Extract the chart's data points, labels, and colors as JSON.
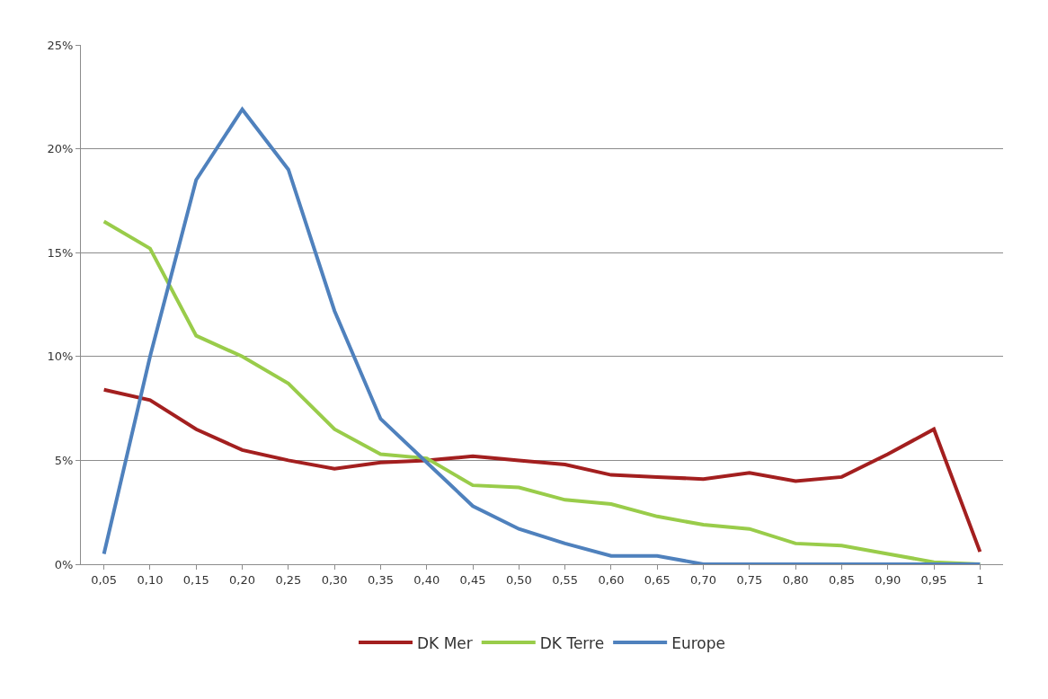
{
  "chart_data": {
    "type": "line",
    "categories": [
      "0,05",
      "0,10",
      "0,15",
      "0,20",
      "0,25",
      "0,30",
      "0,35",
      "0,40",
      "0,45",
      "0,50",
      "0,55",
      "0,60",
      "0,65",
      "0,70",
      "0,75",
      "0,80",
      "0,85",
      "0,90",
      "0,95",
      "1"
    ],
    "series": [
      {
        "name": "DK Mer",
        "color": "#a31f1f",
        "values": [
          8.4,
          7.9,
          6.5,
          5.5,
          5.0,
          4.6,
          4.9,
          5.0,
          5.2,
          5.0,
          4.8,
          4.3,
          4.2,
          4.1,
          4.4,
          4.0,
          4.2,
          5.3,
          6.5,
          0.6
        ]
      },
      {
        "name": "DK Terre",
        "color": "#99cc4a",
        "values": [
          16.5,
          15.2,
          11.0,
          10.0,
          8.7,
          6.5,
          5.3,
          5.1,
          3.8,
          3.7,
          3.1,
          2.9,
          2.3,
          1.9,
          1.7,
          1.0,
          0.9,
          0.5,
          0.1,
          0
        ]
      },
      {
        "name": "Europe",
        "color": "#4f81bd",
        "values": [
          0.5,
          10.0,
          18.5,
          21.9,
          19.0,
          12.2,
          7.0,
          4.9,
          2.8,
          1.7,
          1.0,
          0.4,
          0.4,
          0,
          0,
          0,
          0,
          0,
          0,
          0
        ]
      }
    ],
    "ylim": [
      0,
      25
    ],
    "yticks": [
      {
        "value": 0,
        "label": "0%"
      },
      {
        "value": 5,
        "label": "5%"
      },
      {
        "value": 10,
        "label": "10%"
      },
      {
        "value": 15,
        "label": "15%"
      },
      {
        "value": 20,
        "label": "20%"
      },
      {
        "value": 25,
        "label": "25%"
      }
    ],
    "grid": "y",
    "legend": "bottom",
    "marker": "none",
    "line_style": "solid"
  }
}
